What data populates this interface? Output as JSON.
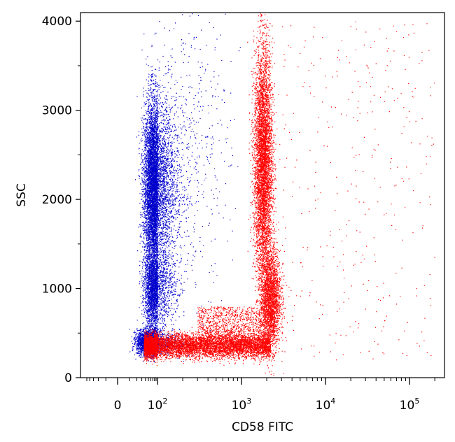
{
  "chart_data": {
    "type": "scatter",
    "title": "",
    "xlabel": "CD58 FITC",
    "ylabel": "SSC",
    "x_scale": "biexponential",
    "x_ticks": [
      {
        "value": 0,
        "base": "0",
        "exp": ""
      },
      {
        "value": 100,
        "base": "10",
        "exp": "2"
      },
      {
        "value": 1000,
        "base": "10",
        "exp": "3"
      },
      {
        "value": 10000,
        "base": "10",
        "exp": "4"
      },
      {
        "value": 100000,
        "base": "10",
        "exp": "5"
      }
    ],
    "y_ticks": [
      0,
      1000,
      2000,
      3000,
      4000
    ],
    "ylim": [
      0,
      4096
    ],
    "grid": false,
    "legend": "none",
    "series": [
      {
        "color": "#0000cc",
        "populations": [
          {
            "x_center": 75,
            "y_center": 2150,
            "x_spread_log": 0.17,
            "y_sd": 480,
            "count": 9000
          },
          {
            "x_center": 75,
            "y_center": 1000,
            "x_spread_log": 0.16,
            "y_sd": 220,
            "count": 2600
          },
          {
            "x_center": 55,
            "y_center": 400,
            "x_spread_log": 0.22,
            "y_sd": 70,
            "count": 2600
          },
          {
            "x_center": 230,
            "y_center": 2600,
            "x_spread_log": 0.25,
            "y_sd": 800,
            "count": 500
          }
        ]
      },
      {
        "color": "#ff0000",
        "populations": [
          {
            "x_center": 1800,
            "y_center": 2400,
            "x_spread_log": 0.055,
            "y_sd": 650,
            "count": 8000
          },
          {
            "x_center": 2200,
            "y_center": 900,
            "x_spread_log": 0.06,
            "y_sd": 280,
            "count": 2400
          },
          {
            "x_range": [
              35,
              2200
            ],
            "y_center": 360,
            "y_sd": 65,
            "count": 7000
          },
          {
            "x_range": [
              300,
              2500
            ],
            "y_range": [
              400,
              800
            ],
            "count": 1200
          },
          {
            "x_range": [
              3000,
              200000
            ],
            "y_range": [
              200,
              4000
            ],
            "count": 350
          }
        ]
      }
    ]
  }
}
